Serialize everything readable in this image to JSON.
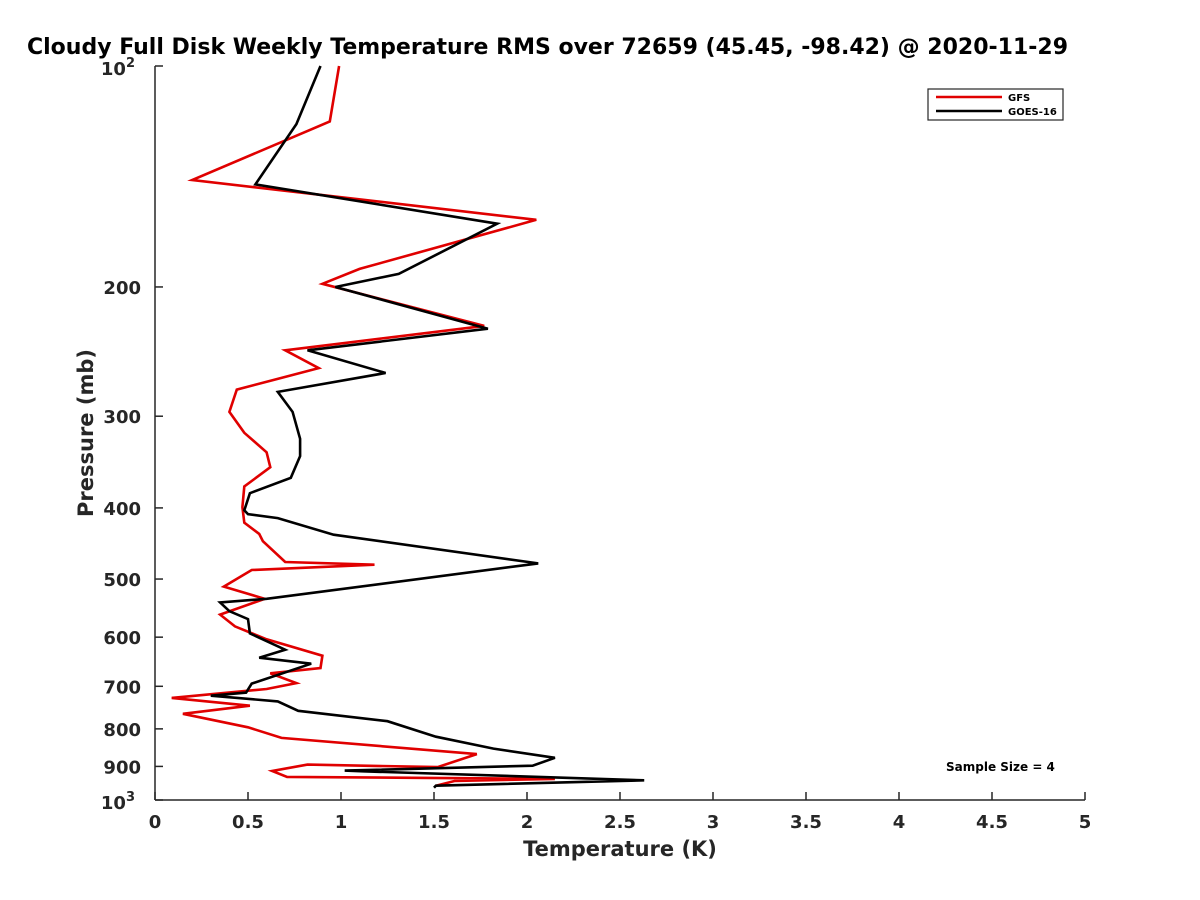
{
  "chart_data": {
    "type": "line",
    "title": "Cloudy Full Disk Weekly Temperature RMS over 72659 (45.45, -98.42) @ 2020-11-29",
    "xlabel": "Temperature (K)",
    "ylabel": "Pressure (mb)",
    "xlim": [
      0,
      5
    ],
    "ylim": [
      100,
      1000
    ],
    "y_scale": "log",
    "y_reversed": true,
    "x_ticks": [
      "0",
      "0.5",
      "1",
      "1.5",
      "2",
      "2.5",
      "3",
      "3.5",
      "4",
      "4.5",
      "5"
    ],
    "y_ticks": [
      {
        "value": 100,
        "base": "10",
        "exp": "2"
      },
      {
        "value": 200,
        "label": "200"
      },
      {
        "value": 300,
        "label": "300"
      },
      {
        "value": 400,
        "label": "400"
      },
      {
        "value": 500,
        "label": "500"
      },
      {
        "value": 600,
        "label": "600"
      },
      {
        "value": 700,
        "label": "700"
      },
      {
        "value": 800,
        "label": "800"
      },
      {
        "value": 900,
        "label": "900"
      },
      {
        "value": 1000,
        "base": "10",
        "exp": "3"
      }
    ],
    "grid": false,
    "legend_position": "top-right",
    "annotation": "Sample Size = 4",
    "series": [
      {
        "name": "GFS",
        "color": "#e00000",
        "x": [
          0.99,
          0.94,
          0.2,
          2.05,
          1.1,
          0.9,
          1.77,
          0.7,
          0.88,
          0.44,
          0.4,
          0.48,
          0.6,
          0.62,
          0.48,
          0.47,
          0.48,
          0.56,
          0.58,
          0.7,
          1.18,
          0.52,
          0.37,
          0.59,
          0.35,
          0.43,
          0.6,
          0.9,
          0.89,
          0.62,
          0.76,
          0.6,
          0.09,
          0.51,
          0.15,
          0.5,
          0.68,
          1.73,
          1.52,
          0.82,
          0.63,
          0.71,
          2.15,
          1.61,
          1.51
        ],
        "y": [
          100,
          119,
          143,
          162,
          189,
          198,
          226,
          244,
          258,
          276,
          296,
          316,
          336,
          352,
          374,
          399,
          419,
          434,
          444,
          474,
          478,
          486,
          512,
          532,
          559,
          580,
          604,
          636,
          661,
          672,
          693,
          706,
          726,
          744,
          763,
          796,
          823,
          866,
          902,
          895,
          913,
          930,
          936,
          942,
          956
        ]
      },
      {
        "name": "GOES-16",
        "color": "#000000",
        "x": [
          0.89,
          0.76,
          0.54,
          1.84,
          1.31,
          0.97,
          1.79,
          0.82,
          1.24,
          0.66,
          0.74,
          0.78,
          0.78,
          0.73,
          0.51,
          0.48,
          0.5,
          0.66,
          0.96,
          2.06,
          0.6,
          0.35,
          0.4,
          0.5,
          0.51,
          0.7,
          0.56,
          0.84,
          0.52,
          0.49,
          0.3,
          0.66,
          0.77,
          1.25,
          1.51,
          1.82,
          2.15,
          2.03,
          1.02,
          1.12,
          2.63,
          1.51,
          1.5
        ],
        "y": [
          100,
          120,
          145,
          164,
          192,
          200,
          228,
          244,
          262,
          278,
          296,
          322,
          340,
          364,
          382,
          403,
          408,
          413,
          435,
          476,
          532,
          538,
          553,
          567,
          593,
          624,
          640,
          652,
          694,
          714,
          721,
          734,
          756,
          781,
          820,
          851,
          876,
          898,
          912,
          914,
          940,
          956,
          962
        ]
      }
    ]
  }
}
